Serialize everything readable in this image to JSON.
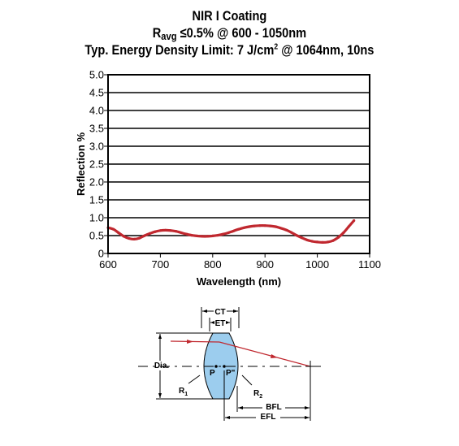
{
  "header": {
    "line1": "NIR I Coating",
    "line2_prefix": "R",
    "line2_sub": "avg",
    "line2_rest": " ≤0.5% @ 600 - 1050nm",
    "line3_prefix": "Typ. Energy Density Limit: 7 J/cm",
    "line3_sup": "2",
    "line3_rest": " @ 1064nm, 10ns"
  },
  "chart_data": {
    "type": "line",
    "title": "NIR I Coating",
    "xlabel": "Wavelength (nm)",
    "ylabel": "Reflection %",
    "xlim": [
      600,
      1100
    ],
    "ylim": [
      0,
      5
    ],
    "xticks": [
      600,
      700,
      800,
      900,
      1000,
      1100
    ],
    "yticks": [
      0,
      0.5,
      1.0,
      1.5,
      2.0,
      2.5,
      3.0,
      3.5,
      4.0,
      4.5,
      5.0
    ],
    "ytick_labels": [
      "0",
      "0.5",
      "1.0",
      "1.5",
      "2.0",
      "2.5",
      "3.0",
      "3.5",
      "4.0",
      "4.5",
      "5.0"
    ],
    "grid": "horizontal",
    "series": [
      {
        "color": "#c0282f",
        "x": [
          600,
          610,
          620,
          630,
          640,
          650,
          660,
          670,
          680,
          690,
          700,
          710,
          720,
          730,
          740,
          750,
          760,
          770,
          780,
          790,
          800,
          810,
          820,
          830,
          840,
          850,
          860,
          870,
          880,
          890,
          900,
          910,
          920,
          930,
          940,
          950,
          960,
          970,
          980,
          990,
          1000,
          1010,
          1020,
          1030,
          1040,
          1050,
          1060,
          1070
        ],
        "y": [
          0.72,
          0.68,
          0.58,
          0.48,
          0.42,
          0.4,
          0.43,
          0.5,
          0.56,
          0.61,
          0.64,
          0.65,
          0.64,
          0.62,
          0.58,
          0.54,
          0.51,
          0.49,
          0.48,
          0.48,
          0.49,
          0.51,
          0.54,
          0.58,
          0.63,
          0.68,
          0.72,
          0.75,
          0.77,
          0.78,
          0.78,
          0.77,
          0.75,
          0.71,
          0.66,
          0.59,
          0.51,
          0.44,
          0.38,
          0.34,
          0.32,
          0.31,
          0.32,
          0.36,
          0.45,
          0.58,
          0.75,
          0.92
        ]
      }
    ]
  },
  "diagram": {
    "labels": {
      "ct": "CT",
      "et": "ET",
      "dia": "Dia.",
      "p": "P",
      "p_prime": "P\"",
      "r1": "R",
      "r1_sub": "1",
      "r2": "R",
      "r2_sub": "2",
      "bfl": "BFL",
      "efl": "EFL"
    },
    "colors": {
      "lens_fill": "#9ccdee",
      "ray": "#c0282f"
    }
  }
}
